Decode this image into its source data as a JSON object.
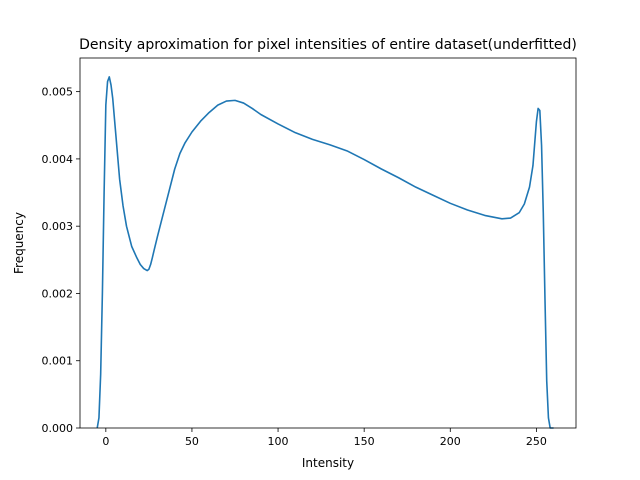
{
  "chart_data": {
    "type": "line",
    "title": "Density aproximation for pixel intensities of entire dataset(underfitted)",
    "xlabel": "Intensity",
    "ylabel": "Frequency",
    "xlim": [
      -15,
      273
    ],
    "ylim": [
      0,
      0.0055
    ],
    "xticks": [
      0,
      50,
      100,
      150,
      200,
      250
    ],
    "yticks": [
      0.0,
      0.001,
      0.002,
      0.003,
      0.004,
      0.005
    ],
    "xtick_labels": [
      "0",
      "50",
      "100",
      "150",
      "200",
      "250"
    ],
    "ytick_labels": [
      "0.000",
      "0.001",
      "0.002",
      "0.003",
      "0.004",
      "0.005"
    ],
    "grid": false,
    "series": [
      {
        "color": "#1f77b4",
        "x": [
          -5,
          -4,
          -3,
          -2,
          -1,
          0,
          1,
          2,
          3,
          4,
          5,
          6,
          7,
          8,
          10,
          12,
          15,
          18,
          20,
          22,
          24,
          25,
          26,
          27,
          28,
          30,
          33,
          36,
          40,
          43,
          46,
          50,
          55,
          60,
          65,
          70,
          75,
          80,
          85,
          90,
          100,
          110,
          120,
          130,
          140,
          150,
          160,
          170,
          180,
          190,
          200,
          210,
          220,
          230,
          235,
          240,
          243,
          246,
          248,
          250,
          251,
          252,
          253,
          254,
          255,
          256,
          257,
          258,
          259,
          260
        ],
        "y": [
          0,
          0.00015,
          0.0008,
          0.002,
          0.0035,
          0.0048,
          0.00515,
          0.00522,
          0.0051,
          0.0049,
          0.0046,
          0.0043,
          0.004,
          0.0037,
          0.0033,
          0.003,
          0.0027,
          0.00253,
          0.00243,
          0.00237,
          0.00234,
          0.00236,
          0.00243,
          0.00253,
          0.00264,
          0.00285,
          0.00315,
          0.00345,
          0.00385,
          0.00408,
          0.00424,
          0.0044,
          0.00456,
          0.00469,
          0.0048,
          0.00486,
          0.00487,
          0.00483,
          0.00475,
          0.00466,
          0.00452,
          0.00439,
          0.00429,
          0.00421,
          0.00412,
          0.00399,
          0.00385,
          0.00372,
          0.00358,
          0.00346,
          0.00334,
          0.00324,
          0.00316,
          0.00311,
          0.00312,
          0.0032,
          0.00333,
          0.00358,
          0.0039,
          0.00455,
          0.00475,
          0.00472,
          0.0042,
          0.0032,
          0.0019,
          0.0007,
          0.00015,
          0,
          0,
          0
        ]
      }
    ]
  }
}
